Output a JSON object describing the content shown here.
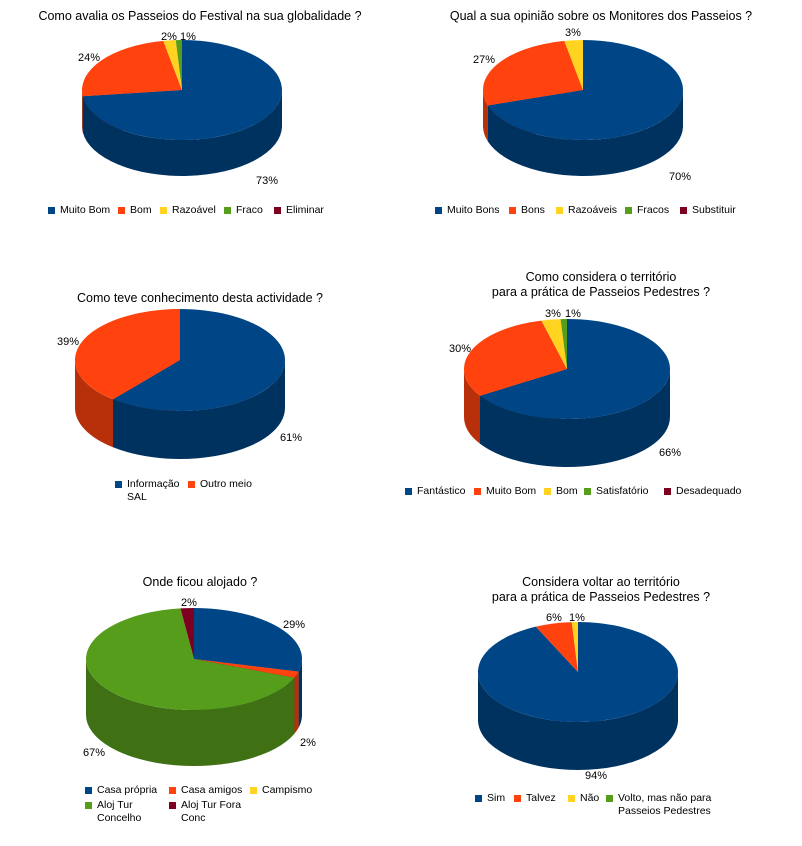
{
  "colors": [
    "#004586",
    "#ff420e",
    "#ffd320",
    "#579d1c",
    "#7e0021"
  ],
  "chart_data": [
    {
      "type": "pie",
      "title": "Como avalia os Passeios do Festival na sua globalidade ?",
      "categories": [
        "Muito Bom",
        "Bom",
        "Razoável",
        "Fraco",
        "Eliminar"
      ],
      "values": [
        73,
        24,
        2,
        1,
        0
      ],
      "data_labels": [
        "73%",
        "24%",
        "2%",
        "1%",
        ""
      ],
      "legend": "bottom"
    },
    {
      "type": "pie",
      "title": "Qual a sua opinião sobre os Monitores dos Passeios ?",
      "categories": [
        "Muito Bons",
        "Bons",
        "Razoáveis",
        "Fracos",
        "Substituir"
      ],
      "values": [
        70,
        27,
        3,
        0,
        0
      ],
      "data_labels": [
        "70%",
        "27%",
        "3%",
        "",
        ""
      ],
      "legend": "bottom"
    },
    {
      "type": "pie",
      "title": "Como teve conhecimento desta actividade ?",
      "categories": [
        "Informação SAL",
        "Outro meio"
      ],
      "values": [
        61,
        39
      ],
      "data_labels": [
        "61%",
        "39%"
      ],
      "legend": "bottom"
    },
    {
      "type": "pie",
      "title": "Como considera o território\npara a prática de Passeios Pedestres ?",
      "categories": [
        "Fantástico",
        "Muito Bom",
        "Bom",
        "Satisfatório",
        "Desadequado"
      ],
      "values": [
        66,
        30,
        3,
        1,
        0
      ],
      "data_labels": [
        "66%",
        "30%",
        "3%",
        "1%",
        ""
      ],
      "legend": "bottom"
    },
    {
      "type": "pie",
      "title": "Onde ficou alojado ?",
      "categories": [
        "Casa própria",
        "Casa amigos",
        "Campismo",
        "Aloj Tur Concelho",
        "Aloj Tur Fora Conc"
      ],
      "values": [
        29,
        2,
        0,
        67,
        2
      ],
      "data_labels": [
        "29%",
        "2%",
        "",
        "67%",
        "2%"
      ],
      "legend": "bottom"
    },
    {
      "type": "pie",
      "title": "Considera voltar ao território\npara a prática de Passeios Pedestres ?",
      "categories": [
        "Sim",
        "Talvez",
        "Não",
        "Volto, mas não para Passeios Pedestres"
      ],
      "values": [
        94,
        6,
        1,
        0
      ],
      "data_labels": [
        "94%",
        "6%",
        "1%",
        ""
      ],
      "legend": "bottom"
    }
  ]
}
